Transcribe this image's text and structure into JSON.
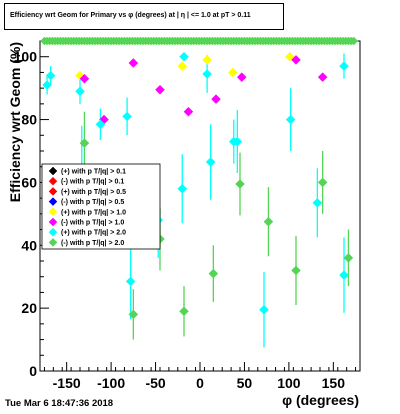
{
  "title": "Efficiency wrt Geom for Primary vs φ (degrees) at | η | <= 1.0 at pT > 0.11",
  "footer": "Tue Mar  6 18:47:36 2018",
  "chart_data": {
    "type": "scatter",
    "title": "Efficiency wrt Geom for Primary vs φ (degrees) at | η | <= 1.0 at pT > 0.11",
    "xlabel": "φ (degrees)",
    "ylabel": "Efficiency wrt Geom (%)",
    "xlim": [
      -180,
      180
    ],
    "ylim": [
      0,
      105
    ],
    "x_ticks": [
      -150,
      -100,
      -50,
      0,
      50,
      100,
      150
    ],
    "y_ticks": [
      0,
      20,
      40,
      60,
      80,
      100
    ],
    "grid": false,
    "legend_position": "left-middle",
    "series": [
      {
        "name": "(+) with p T/|q| > 0.1",
        "color": "#000000",
        "points": []
      },
      {
        "name": "(-) with p T/|q| > 0.1",
        "color": "#ff0000",
        "points": []
      },
      {
        "name": "(+) with p T/|q| > 0.5",
        "color": "#ff0000",
        "points": []
      },
      {
        "name": "(-) with p T/|q| > 0.5",
        "color": "#0000ff",
        "points": []
      },
      {
        "name": "(+) with p T/|q| > 1.0",
        "color": "#ffff00",
        "points": [
          {
            "x": -135,
            "y": 94,
            "err": 0
          },
          {
            "x": -20,
            "y": 97,
            "err": 0
          },
          {
            "x": 8,
            "y": 99,
            "err": 0
          },
          {
            "x": 37,
            "y": 95,
            "err": 0
          },
          {
            "x": 101,
            "y": 100,
            "err": 0
          }
        ]
      },
      {
        "name": "(-) with p T/|q| > 1.0",
        "color": "#ff00ff",
        "points": [
          {
            "x": -130,
            "y": 93,
            "err": 0
          },
          {
            "x": -108,
            "y": 80,
            "err": 0
          },
          {
            "x": -75,
            "y": 98,
            "err": 0
          },
          {
            "x": -45,
            "y": 89.5,
            "err": 0
          },
          {
            "x": -13,
            "y": 82.5,
            "err": 0
          },
          {
            "x": 18,
            "y": 86.5,
            "err": 0
          },
          {
            "x": 47,
            "y": 93.5,
            "err": 0
          },
          {
            "x": 108,
            "y": 99,
            "err": 0
          },
          {
            "x": 138,
            "y": 93.5,
            "err": 0
          }
        ]
      },
      {
        "name": "(+) with p T/|q| > 2.0",
        "color": "#00ffff",
        "points": [
          {
            "x": -172,
            "y": 91,
            "err": 3
          },
          {
            "x": -168,
            "y": 94,
            "err": 3
          },
          {
            "x": -135,
            "y": 89,
            "err": 4
          },
          {
            "x": -133,
            "y": 64,
            "err": 14
          },
          {
            "x": -112,
            "y": 78.5,
            "err": 5
          },
          {
            "x": -82,
            "y": 81,
            "err": 6
          },
          {
            "x": -78,
            "y": 28.5,
            "err": 12
          },
          {
            "x": -47,
            "y": 48,
            "err": 12
          },
          {
            "x": -20,
            "y": 58,
            "err": 11
          },
          {
            "x": -18,
            "y": 100,
            "err": 0
          },
          {
            "x": 8,
            "y": 94.5,
            "err": 6
          },
          {
            "x": 12,
            "y": 66.5,
            "err": 12
          },
          {
            "x": 38,
            "y": 73,
            "err": 7
          },
          {
            "x": 42,
            "y": 73,
            "err": 10
          },
          {
            "x": 72,
            "y": 19.5,
            "err": 12
          },
          {
            "x": 102,
            "y": 80,
            "err": 10
          },
          {
            "x": 132,
            "y": 53.5,
            "err": 11
          },
          {
            "x": 162,
            "y": 97,
            "err": 4
          },
          {
            "x": 162,
            "y": 30.5,
            "err": 12
          }
        ]
      },
      {
        "name": "(-) with p T/|q| > 2.0",
        "color": "#55d455",
        "points": [
          {
            "x": -130,
            "y": 72.5,
            "err": 10
          },
          {
            "x": -75,
            "y": 18,
            "err": 8
          },
          {
            "x": -45,
            "y": 42,
            "err": 10
          },
          {
            "x": -18,
            "y": 19,
            "err": 8
          },
          {
            "x": 15,
            "y": 31,
            "err": 9
          },
          {
            "x": 45,
            "y": 59.5,
            "err": 10
          },
          {
            "x": 77,
            "y": 47.5,
            "err": 11
          },
          {
            "x": 108,
            "y": 32,
            "err": 11
          },
          {
            "x": 138,
            "y": 60,
            "err": 10
          },
          {
            "x": 167,
            "y": 36,
            "err": 9
          }
        ]
      },
      {
        "name": "",
        "color": "#55d455",
        "role": "row of markers at top",
        "y": 105,
        "x_from": -175,
        "x_to": 175,
        "x_step": 3
      }
    ]
  }
}
